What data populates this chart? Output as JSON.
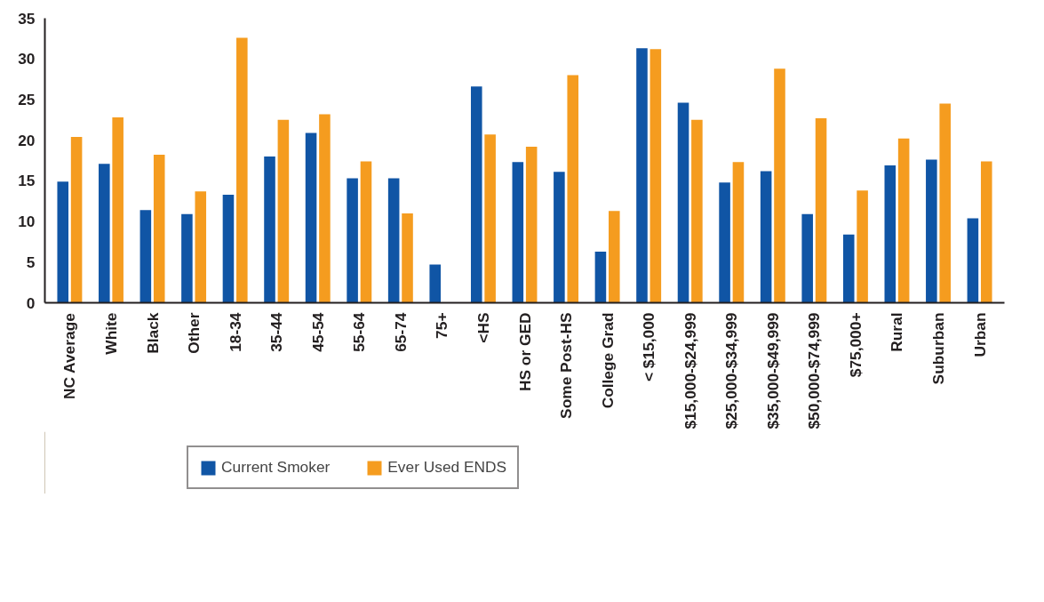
{
  "chart_data": {
    "type": "bar",
    "categories": [
      "NC Average",
      "White",
      "Black",
      "Other",
      "18-34",
      "35-44",
      "45-54",
      "55-64",
      "65-74",
      "75+",
      "<HS",
      "HS or GED",
      "Some Post-HS",
      "College Grad",
      "< $15,000",
      "$15,000-$24,999",
      "$25,000-$34,999",
      "$35,000-$49,999",
      "$50,000-$74,999",
      "$75,000+",
      "Rural",
      "Suburban",
      "Urban"
    ],
    "series": [
      {
        "name": "Current Smoker",
        "color": "#1055a5",
        "values": [
          14.9,
          17.1,
          11.4,
          10.9,
          13.3,
          18.0,
          20.9,
          15.3,
          15.3,
          4.7,
          26.6,
          17.3,
          16.1,
          6.3,
          31.3,
          24.6,
          14.8,
          16.2,
          10.9,
          8.4,
          16.9,
          17.6,
          10.4
        ]
      },
      {
        "name": "Ever Used ENDS",
        "color": "#f59c1f",
        "values": [
          20.4,
          22.8,
          18.2,
          13.7,
          32.6,
          22.5,
          23.2,
          17.4,
          11.0,
          null,
          20.7,
          19.2,
          28.0,
          11.3,
          31.2,
          22.5,
          17.3,
          28.8,
          22.7,
          13.8,
          20.2,
          24.5,
          17.4
        ]
      }
    ],
    "ylim": [
      0,
      35
    ],
    "yticks": [
      0,
      5,
      10,
      15,
      20,
      25,
      30,
      35
    ],
    "grid": false,
    "legend": "bottom"
  }
}
